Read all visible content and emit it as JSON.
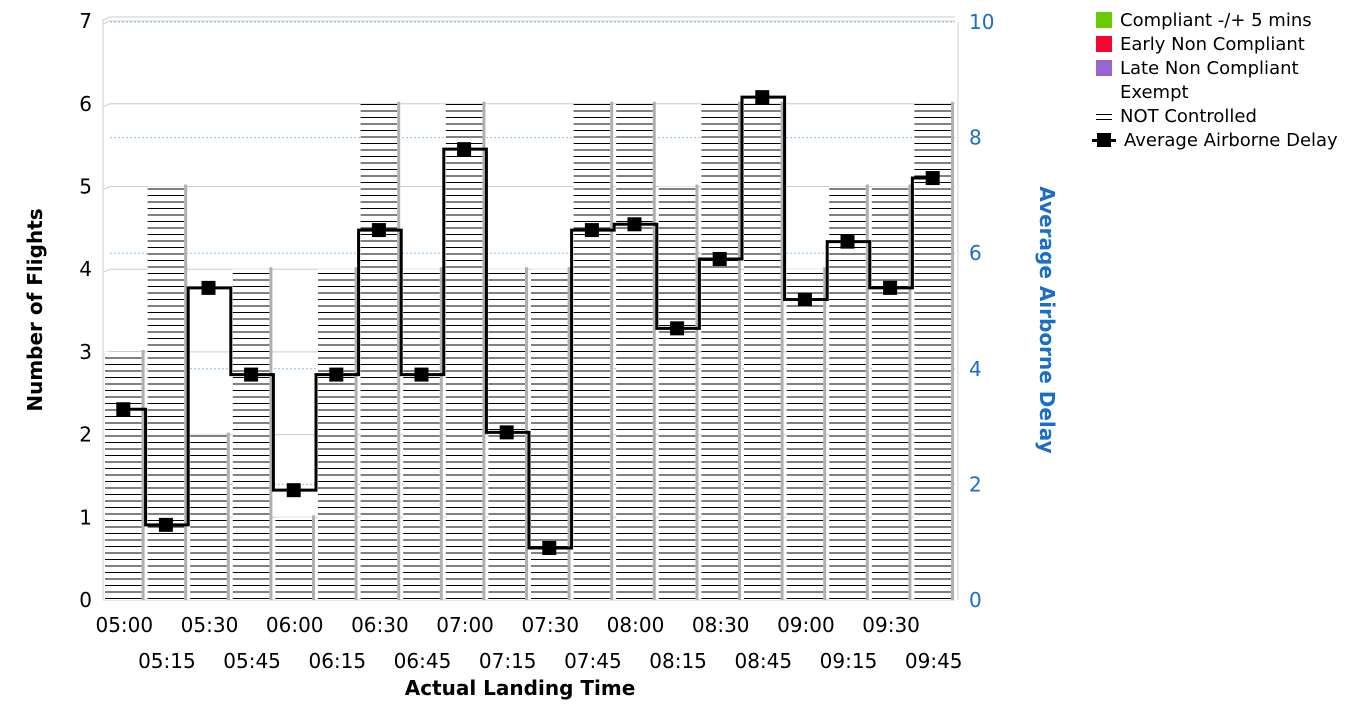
{
  "chart_data": {
    "type": "bar",
    "title": "",
    "xlabel": "Actual Landing Time",
    "ylabel": "Number of Flights",
    "y2label": "Average Airborne Delay",
    "ylim": [
      0,
      7
    ],
    "y2lim": [
      0,
      10
    ],
    "yticks": [
      "0",
      "1",
      "2",
      "3",
      "4",
      "5",
      "6",
      "7"
    ],
    "y2ticks": [
      "0",
      "2",
      "4",
      "6",
      "8",
      "10"
    ],
    "categories": [
      "05:00",
      "05:15",
      "05:30",
      "05:45",
      "06:00",
      "06:15",
      "06:30",
      "06:45",
      "07:00",
      "07:15",
      "07:30",
      "07:45",
      "08:00",
      "08:15",
      "08:30",
      "08:45",
      "09:00",
      "09:15",
      "09:30",
      "09:45"
    ],
    "series": [
      {
        "name": "Compliant -/+ 5 mins",
        "color": "#66cc00",
        "values": [
          0,
          0,
          0,
          0,
          0,
          0,
          0,
          0,
          0,
          0,
          0,
          0,
          0,
          0,
          0,
          0,
          0,
          0,
          0,
          0
        ]
      },
      {
        "name": "Early Non Compliant",
        "color": "#ff0033",
        "values": [
          0,
          0,
          0,
          0,
          0,
          0,
          0,
          0,
          0,
          0,
          0,
          0,
          0,
          0,
          0,
          0,
          0,
          0,
          0,
          0
        ]
      },
      {
        "name": "Late Non Compliant",
        "color": "#9966cc",
        "values": [
          0,
          0,
          0,
          0,
          0,
          0,
          0,
          0,
          0,
          0,
          0,
          0,
          0,
          0,
          0,
          0,
          0,
          0,
          0,
          0
        ]
      },
      {
        "name": "Exempt",
        "color": "#ffffff",
        "values": [
          0,
          0,
          0,
          0,
          0,
          0,
          0,
          0,
          0,
          0,
          0,
          0,
          0,
          0,
          0,
          0,
          0,
          0,
          0,
          0
        ]
      },
      {
        "name": "NOT Controlled",
        "color": "#000000",
        "pattern": "horizontal-lines",
        "values": [
          3,
          5,
          2,
          4,
          1,
          4,
          6,
          4,
          6,
          4,
          4,
          6,
          6,
          5,
          6,
          6,
          4,
          5,
          5,
          6
        ]
      },
      {
        "name": "Average Airborne Delay",
        "color": "#000000",
        "type": "step-line",
        "axis": "y2",
        "values": [
          3.3,
          1.3,
          5.4,
          3.9,
          1.9,
          3.9,
          6.4,
          3.9,
          7.8,
          2.9,
          0.9,
          6.4,
          6.5,
          4.7,
          5.9,
          8.7,
          5.2,
          6.2,
          5.4,
          7.3
        ]
      }
    ],
    "grid": true,
    "legend_position": "top-right"
  },
  "legend": [
    {
      "label": "Compliant -/+ 5 mins",
      "symbol": "square",
      "color": "#66cc00"
    },
    {
      "label": "Early Non Compliant",
      "symbol": "square",
      "color": "#ff0033"
    },
    {
      "label": "Late Non Compliant",
      "symbol": "square",
      "color": "#9966cc"
    },
    {
      "label": "Exempt",
      "symbol": "blank",
      "color": "#ffffff"
    },
    {
      "label": "NOT Controlled",
      "symbol": "lines",
      "color": "#000000"
    },
    {
      "label": "Average Airborne Delay",
      "symbol": "line-marker",
      "color": "#000000"
    }
  ],
  "colors": {
    "right_axis": "#1a6ec5",
    "bar_edge": "#b0b0b0",
    "grid": "#cccccc",
    "y2_grid": "#8fc3ee"
  }
}
